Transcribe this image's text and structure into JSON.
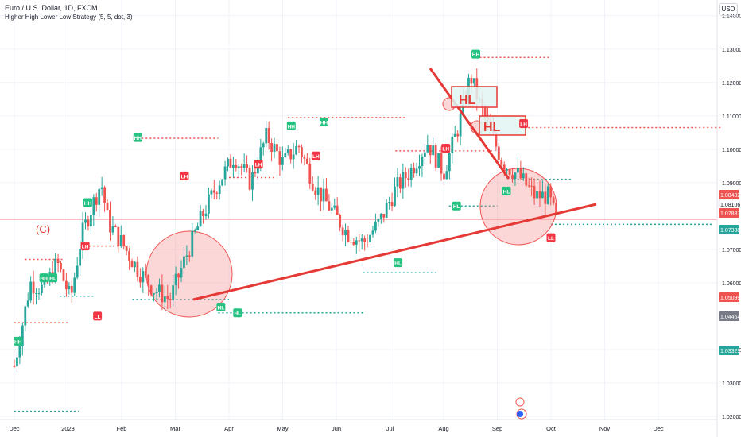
{
  "header": {
    "title": "Euro / U.S. Dollar, 1D, FXCM",
    "indicator": "Higher High Lower Low Strategy (5, 5, dot, 3)",
    "currency_badge": "USD"
  },
  "colors": {
    "up": "#26a69a",
    "down": "#ef5350",
    "hh_label": "#26c281",
    "lh_label": "#f23645",
    "red_line": "#e53935",
    "grid": "#f0f3fa"
  },
  "chart_data": {
    "type": "candlestick",
    "symbol": "EURUSD",
    "x_ticks": [
      "Dec",
      "2023",
      "Feb",
      "Mar",
      "Apr",
      "May",
      "Jun",
      "Jul",
      "Aug",
      "Sep",
      "Oct",
      "Nov",
      "Dec"
    ],
    "y_ticks": [
      "1.14000",
      "1.13000",
      "1.12000",
      "1.11000",
      "1.10000",
      "1.09000",
      "1.07000",
      "1.06000",
      "1.04000",
      "1.03000",
      "1.02000"
    ],
    "ylim": [
      1.0138,
      1.1447
    ],
    "price_tags": [
      {
        "value": "1.08482",
        "color": "#ef5350"
      },
      {
        "value": "1.08106",
        "color": "#ffffff"
      },
      {
        "value": "1.07887",
        "color": "#ef5350"
      },
      {
        "value": "1.07338",
        "color": "#26a69a"
      },
      {
        "value": "1.05099",
        "color": "#ef5350"
      },
      {
        "value": "1.04464",
        "color": "#787b86"
      },
      {
        "value": "1.03329",
        "color": "#26a69a"
      }
    ],
    "swing_labels": [
      {
        "text": "HH",
        "t": 0.07,
        "price": 1.0425,
        "kind": "hh"
      },
      {
        "text": "HH",
        "t": 0.55,
        "price": 1.0615,
        "kind": "hh"
      },
      {
        "text": "HH",
        "t": 1.37,
        "price": 1.084,
        "kind": "hh"
      },
      {
        "text": "HL",
        "t": 0.72,
        "price": 1.0615,
        "kind": "hh"
      },
      {
        "text": "LL",
        "t": 1.55,
        "price": 1.05,
        "kind": "ll"
      },
      {
        "text": "LH",
        "t": 1.32,
        "price": 1.071,
        "kind": "lh"
      },
      {
        "text": "HH",
        "t": 2.3,
        "price": 1.1035,
        "kind": "hh"
      },
      {
        "text": "LH",
        "t": 3.17,
        "price": 1.092,
        "kind": "lh"
      },
      {
        "text": "HL",
        "t": 3.85,
        "price": 1.0527,
        "kind": "hh"
      },
      {
        "text": "HL",
        "t": 4.16,
        "price": 1.051,
        "kind": "hh"
      },
      {
        "text": "LH",
        "t": 4.55,
        "price": 1.0955,
        "kind": "lh"
      },
      {
        "text": "HH",
        "t": 5.16,
        "price": 1.107,
        "kind": "hh"
      },
      {
        "text": "HH",
        "t": 5.77,
        "price": 1.1082,
        "kind": "hh"
      },
      {
        "text": "LH",
        "t": 5.62,
        "price": 1.098,
        "kind": "lh"
      },
      {
        "text": "HL",
        "t": 7.15,
        "price": 1.066,
        "kind": "hh"
      },
      {
        "text": "LH",
        "t": 8.04,
        "price": 1.1003,
        "kind": "lh"
      },
      {
        "text": "HL",
        "t": 8.24,
        "price": 1.083,
        "kind": "hh"
      },
      {
        "text": "HH",
        "t": 8.6,
        "price": 1.1285,
        "kind": "hh"
      },
      {
        "text": "LH",
        "t": 9.49,
        "price": 1.1077,
        "kind": "lh"
      },
      {
        "text": "HL",
        "t": 9.17,
        "price": 1.0875,
        "kind": "hh"
      },
      {
        "text": "LL",
        "t": 10.0,
        "price": 1.0735,
        "kind": "ll"
      }
    ],
    "annotations": [
      {
        "text": "HL",
        "kind": "box"
      },
      {
        "text": "HL",
        "kind": "box"
      },
      {
        "text": "(C)",
        "kind": "label"
      }
    ]
  }
}
